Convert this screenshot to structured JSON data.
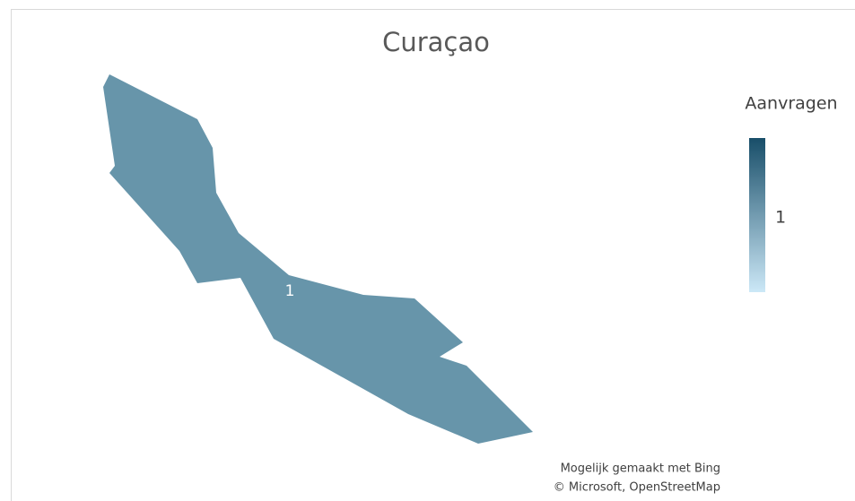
{
  "map": {
    "title": "Curaçao",
    "region": {
      "value": 1,
      "color": "#6795aa"
    },
    "legend": {
      "title": "Aanvragen",
      "ticks": [
        1
      ],
      "colors": [
        "#cce8f7",
        "#184e69"
      ]
    },
    "attribution": [
      "Mogelijk gemaakt met Bing",
      "© Microsoft, OpenStreetMap"
    ]
  }
}
